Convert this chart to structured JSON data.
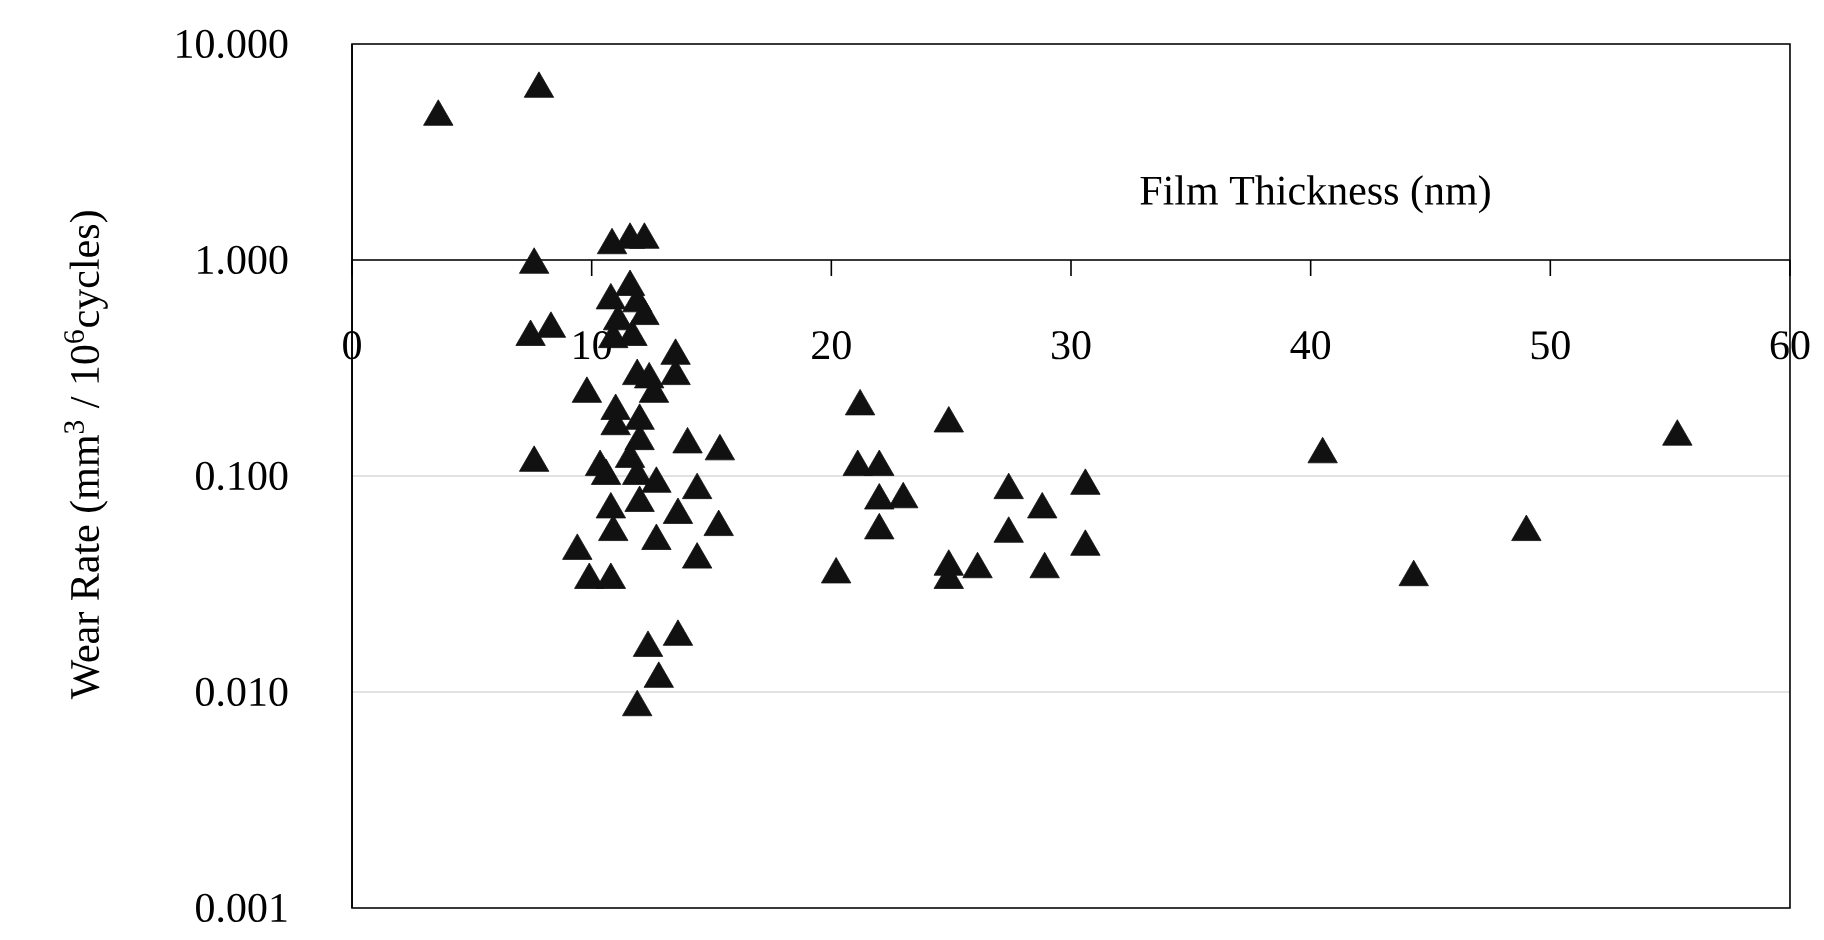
{
  "chart_data": {
    "type": "scatter",
    "xlabel": "Film Thickness (nm)",
    "ylabel": "Wear Rate (mm$^{3}$ / 10$^{6}$cycles)",
    "x": [
      3.6,
      7.8,
      10.85,
      11.6,
      12.2,
      7.6,
      11.6,
      10.8,
      11.9,
      11.1,
      12.2,
      7.45,
      8.3,
      10.9,
      11.7,
      13.5,
      13.5,
      11.9,
      12.4,
      12.6,
      9.8,
      11.0,
      11.0,
      12.0,
      12.0,
      14.0,
      15.35,
      7.6,
      10.35,
      10.6,
      11.6,
      11.9,
      12.7,
      12.0,
      14.4,
      10.8,
      13.6,
      15.3,
      10.9,
      12.7,
      14.4,
      9.4,
      9.9,
      10.8,
      12.35,
      13.6,
      12.8,
      11.9,
      20.2,
      21.2,
      24.9,
      21.1,
      22.0,
      22.0,
      23.0,
      22.0,
      27.4,
      30.6,
      28.8,
      27.4,
      30.6,
      24.9,
      24.9,
      26.1,
      28.9,
      40.5,
      55.3,
      49.0,
      44.3
    ],
    "values": [
      4.6,
      6.2,
      1.17,
      1.24,
      1.24,
      0.95,
      0.75,
      0.65,
      0.63,
      0.52,
      0.55,
      0.44,
      0.48,
      0.43,
      0.44,
      0.36,
      0.29,
      0.29,
      0.28,
      0.24,
      0.24,
      0.2,
      0.17,
      0.18,
      0.145,
      0.14,
      0.13,
      0.115,
      0.11,
      0.1,
      0.12,
      0.1,
      0.092,
      0.075,
      0.086,
      0.07,
      0.066,
      0.058,
      0.055,
      0.05,
      0.041,
      0.045,
      0.033,
      0.033,
      0.016,
      0.018,
      0.0115,
      0.0085,
      0.035,
      0.21,
      0.175,
      0.11,
      0.11,
      0.077,
      0.078,
      0.056,
      0.086,
      0.09,
      0.07,
      0.054,
      0.047,
      0.038,
      0.033,
      0.037,
      0.037,
      0.126,
      0.152,
      0.055,
      0.034
    ],
    "color": "#111111",
    "marker": "triangle",
    "log": "y",
    "grid": "y",
    "xlim": [
      0,
      60
    ],
    "ylim": [
      0.001,
      10
    ],
    "xticks": [
      0,
      10,
      20,
      30,
      40,
      50,
      60
    ],
    "yticks": [
      {
        "value": 0.001,
        "label": "0.001"
      },
      {
        "value": 0.01,
        "label": "0.010"
      },
      {
        "value": 0.1,
        "label": "0.100"
      },
      {
        "value": 1,
        "label": "1.000"
      },
      {
        "value": 10,
        "label": "10.000"
      }
    ]
  }
}
